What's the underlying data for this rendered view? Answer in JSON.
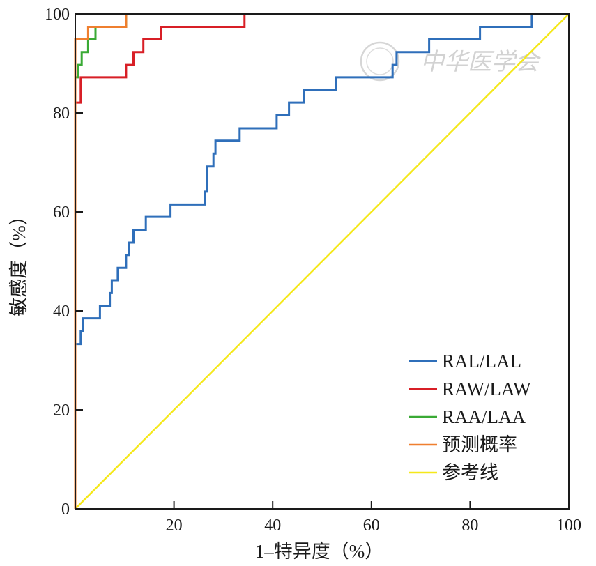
{
  "chart_data": {
    "type": "line",
    "title": "",
    "xlabel": "1–特异度（%）",
    "ylabel": "敏感度（%）",
    "xlim": [
      0,
      100
    ],
    "ylim": [
      0,
      100
    ],
    "x_ticks": [
      0,
      20,
      40,
      60,
      80,
      100
    ],
    "y_ticks": [
      0,
      20,
      40,
      60,
      80,
      100
    ],
    "x_tick_labels": [
      "20",
      "40",
      "60",
      "80",
      "100"
    ],
    "y_tick_labels": [
      "0",
      "20",
      "40",
      "60",
      "80",
      "100"
    ],
    "grid": false,
    "legend_position": "bottom-right",
    "series": [
      {
        "name": "RAL/LAL",
        "color": "#2f6fba",
        "step_points": [
          [
            0,
            0
          ],
          [
            0,
            33.3
          ],
          [
            1.1,
            33.3
          ],
          [
            1.1,
            35.9
          ],
          [
            1.6,
            35.9
          ],
          [
            1.6,
            38.5
          ],
          [
            5,
            38.5
          ],
          [
            5,
            41
          ],
          [
            7,
            41
          ],
          [
            7,
            43.6
          ],
          [
            7.4,
            43.6
          ],
          [
            7.4,
            46.2
          ],
          [
            8.6,
            46.2
          ],
          [
            8.6,
            48.7
          ],
          [
            10.3,
            48.7
          ],
          [
            10.3,
            51.3
          ],
          [
            10.8,
            51.3
          ],
          [
            10.8,
            53.8
          ],
          [
            11.8,
            53.8
          ],
          [
            11.8,
            56.4
          ],
          [
            14.3,
            56.4
          ],
          [
            14.3,
            59
          ],
          [
            19.3,
            59
          ],
          [
            19.3,
            61.5
          ],
          [
            26.3,
            61.5
          ],
          [
            26.3,
            64.1
          ],
          [
            26.7,
            64.1
          ],
          [
            26.7,
            69.2
          ],
          [
            28,
            69.2
          ],
          [
            28,
            71.8
          ],
          [
            28.4,
            71.8
          ],
          [
            28.4,
            74.4
          ],
          [
            33.3,
            74.4
          ],
          [
            33.3,
            76.9
          ],
          [
            40.8,
            76.9
          ],
          [
            40.8,
            79.5
          ],
          [
            43.3,
            79.5
          ],
          [
            43.3,
            82.1
          ],
          [
            46.3,
            82.1
          ],
          [
            46.3,
            84.6
          ],
          [
            52.8,
            84.6
          ],
          [
            52.8,
            87.2
          ],
          [
            64.3,
            87.2
          ],
          [
            64.3,
            89.7
          ],
          [
            65.1,
            89.7
          ],
          [
            65.1,
            92.3
          ],
          [
            71.7,
            92.3
          ],
          [
            71.7,
            94.9
          ],
          [
            82,
            94.9
          ],
          [
            82,
            97.4
          ],
          [
            92.5,
            97.4
          ],
          [
            92.5,
            100
          ],
          [
            100,
            100
          ]
        ]
      },
      {
        "name": "RAW/LAW",
        "color": "#d81f26",
        "step_points": [
          [
            0,
            0
          ],
          [
            0,
            82.1
          ],
          [
            1.1,
            82.1
          ],
          [
            1.1,
            87.2
          ],
          [
            10.3,
            87.2
          ],
          [
            10.3,
            89.7
          ],
          [
            11.8,
            89.7
          ],
          [
            11.8,
            92.3
          ],
          [
            13.8,
            92.3
          ],
          [
            13.8,
            94.9
          ],
          [
            17.3,
            94.9
          ],
          [
            17.3,
            97.4
          ],
          [
            34.3,
            97.4
          ],
          [
            34.3,
            100
          ],
          [
            100,
            100
          ]
        ]
      },
      {
        "name": "RAA/LAA",
        "color": "#3aaa35",
        "step_points": [
          [
            0,
            0
          ],
          [
            0,
            87.2
          ],
          [
            0.5,
            87.2
          ],
          [
            0.5,
            89.7
          ],
          [
            1.3,
            89.7
          ],
          [
            1.3,
            92.3
          ],
          [
            2.6,
            92.3
          ],
          [
            2.6,
            94.9
          ],
          [
            4.1,
            94.9
          ],
          [
            4.1,
            97.4
          ],
          [
            10.3,
            97.4
          ],
          [
            10.3,
            100
          ],
          [
            15.4,
            100
          ],
          [
            15.4,
            100
          ],
          [
            100,
            100
          ]
        ]
      },
      {
        "name": "预测概率",
        "color": "#ef7f2f",
        "step_points": [
          [
            0,
            0
          ],
          [
            0,
            94.9
          ],
          [
            2.6,
            94.9
          ],
          [
            2.6,
            97.4
          ],
          [
            10.3,
            97.4
          ],
          [
            10.3,
            100
          ],
          [
            100,
            100
          ]
        ]
      },
      {
        "name": "参考线",
        "color": "#f5e81a",
        "step_points": [
          [
            0,
            0
          ],
          [
            100,
            100
          ]
        ]
      }
    ]
  },
  "watermark": {
    "text": "中华医学会"
  }
}
